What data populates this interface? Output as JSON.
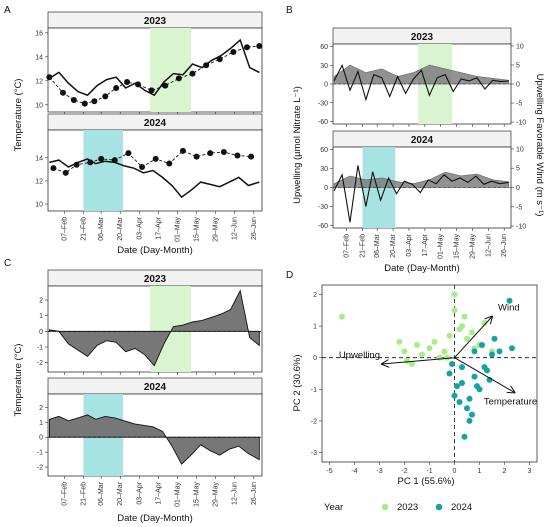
{
  "colors": {
    "period_2023": "#d8f5d0",
    "period_2024": "#a7e3e3",
    "anomaly_fill": "#777777",
    "pca_2023": "#a8ec88",
    "pca_2024": "#14a3a3"
  },
  "chart_data": [
    {
      "panel": "A",
      "type": "line",
      "ylabel": "Temperature (°C)",
      "xlabel": "Date (Day-Month)",
      "x_ticks": [
        "07–Feb",
        "21–Feb",
        "06–Mar",
        "20–Mar",
        "03–Apr",
        "17–Apr",
        "01–May",
        "15–May",
        "29–May",
        "12–Jun",
        "26–Jun"
      ],
      "facets": [
        {
          "title": "2023",
          "ylim": [
            9.4,
            16.4
          ],
          "y_ticks": [
            10,
            12,
            14,
            16
          ],
          "highlight": [
            "2023-04-11",
            "2023-05-11"
          ],
          "line": {
            "x": [
              "2023-01-27",
              "2023-02-03",
              "2023-02-10",
              "2023-02-17",
              "2023-02-24",
              "2023-03-03",
              "2023-03-10",
              "2023-03-17",
              "2023-03-24",
              "2023-03-31",
              "2023-04-07",
              "2023-04-14",
              "2023-04-21",
              "2023-04-28",
              "2023-05-05",
              "2023-05-12",
              "2023-05-19",
              "2023-05-26",
              "2023-06-02",
              "2023-06-09",
              "2023-06-16",
              "2023-06-23",
              "2023-06-30"
            ],
            "y": [
              12.2,
              12.7,
              11.8,
              11.1,
              10.8,
              11.6,
              12.1,
              12.3,
              11.4,
              11.8,
              11.2,
              10.8,
              11.9,
              12.6,
              12.5,
              13.4,
              13.1,
              13.7,
              14.1,
              14.7,
              15.4,
              13.1,
              12.7
            ]
          },
          "points": {
            "x": [
              "2023-01-27",
              "2023-02-06",
              "2023-02-14",
              "2023-02-22",
              "2023-03-01",
              "2023-03-09",
              "2023-03-17",
              "2023-03-25",
              "2023-04-02",
              "2023-04-12",
              "2023-04-22",
              "2023-05-02",
              "2023-05-12",
              "2023-05-22",
              "2023-06-01",
              "2023-06-11",
              "2023-06-21",
              "2023-06-30"
            ],
            "y": [
              12.3,
              11.0,
              10.4,
              10.1,
              10.3,
              10.7,
              11.4,
              11.9,
              11.7,
              11.2,
              11.6,
              12.2,
              12.6,
              13.3,
              13.8,
              14.4,
              14.8,
              14.9
            ]
          }
        },
        {
          "title": "2024",
          "ylim": [
            9.4,
            16.4
          ],
          "y_ticks": [
            10,
            12,
            14
          ],
          "highlight": [
            "2024-02-21",
            "2024-03-22"
          ],
          "line": {
            "x": [
              "2024-01-27",
              "2024-02-03",
              "2024-02-10",
              "2024-02-17",
              "2024-02-24",
              "2024-03-02",
              "2024-03-09",
              "2024-03-16",
              "2024-03-23",
              "2024-03-30",
              "2024-04-06",
              "2024-04-13",
              "2024-04-20",
              "2024-04-27",
              "2024-05-04",
              "2024-05-11",
              "2024-05-18",
              "2024-05-25",
              "2024-06-01",
              "2024-06-08",
              "2024-06-15",
              "2024-06-22",
              "2024-06-30"
            ],
            "y": [
              13.6,
              13.8,
              13.2,
              13.6,
              13.9,
              13.5,
              13.7,
              13.6,
              13.3,
              13.1,
              12.7,
              12.9,
              12.3,
              11.6,
              10.6,
              11.2,
              11.9,
              11.7,
              11.5,
              11.9,
              12.3,
              11.6,
              11.9
            ]
          },
          "points": {
            "x": [
              "2024-01-30",
              "2024-02-08",
              "2024-02-16",
              "2024-02-26",
              "2024-03-06",
              "2024-03-16",
              "2024-03-26",
              "2024-04-05",
              "2024-04-15",
              "2024-04-25",
              "2024-05-05",
              "2024-05-15",
              "2024-05-25",
              "2024-06-04",
              "2024-06-14",
              "2024-06-24"
            ],
            "y": [
              13.1,
              12.7,
              13.4,
              13.6,
              13.9,
              13.8,
              14.4,
              13.2,
              13.9,
              13.5,
              14.6,
              14.1,
              14.4,
              14.5,
              14.2,
              14.1
            ]
          }
        }
      ]
    },
    {
      "panel": "B",
      "type": "line",
      "ylabel": "Upwelling (µmol Nitrate L⁻¹)",
      "ylabel2": "Upwelling Favorable Wind (m s⁻¹)",
      "xlabel": "Date (Day-Month)",
      "x_ticks": [
        "07–Feb",
        "21–Feb",
        "06–Mar",
        "20–Mar",
        "03–Apr",
        "17–Apr",
        "01–May",
        "15–May",
        "29–May",
        "12–Jun",
        "26–Jun"
      ],
      "facets": [
        {
          "title": "2023",
          "ylim": [
            -64,
            64
          ],
          "y_ticks": [
            -60,
            -30,
            0,
            30,
            60
          ],
          "y2_ticks": [
            -10,
            -5,
            0,
            5,
            10
          ],
          "highlight": [
            "2023-04-11",
            "2023-05-11"
          ],
          "nitrate": {
            "x": [
              "2023-01-27",
              "2023-02-03",
              "2023-02-10",
              "2023-02-17",
              "2023-02-24",
              "2023-03-03",
              "2023-03-10",
              "2023-03-17",
              "2023-03-24",
              "2023-03-31",
              "2023-04-07",
              "2023-04-14",
              "2023-04-21",
              "2023-04-28",
              "2023-05-05",
              "2023-05-12",
              "2023-05-19",
              "2023-05-26",
              "2023-06-02",
              "2023-06-09",
              "2023-06-16",
              "2023-06-23",
              "2023-06-30"
            ],
            "y": [
              5,
              30,
              -10,
              20,
              -25,
              15,
              10,
              -20,
              12,
              -15,
              8,
              22,
              -18,
              10,
              15,
              -12,
              8,
              5,
              10,
              -8,
              6,
              4,
              5
            ]
          },
          "wind": {
            "x": [
              "2023-01-27",
              "2023-02-10",
              "2023-02-24",
              "2023-03-10",
              "2023-03-24",
              "2023-04-07",
              "2023-04-21",
              "2023-05-05",
              "2023-05-19",
              "2023-06-02",
              "2023-06-16",
              "2023-06-30"
            ],
            "y": [
              2,
              5,
              3,
              4,
              2,
              3,
              5,
              4,
              3,
              2,
              1.5,
              1
            ]
          }
        },
        {
          "title": "2024",
          "ylim": [
            -64,
            64
          ],
          "y_ticks": [
            -60,
            -30,
            0,
            30,
            60
          ],
          "y2_ticks": [
            -10,
            -5,
            0,
            5,
            10
          ],
          "highlight": [
            "2024-02-21",
            "2024-03-22"
          ],
          "nitrate": {
            "x": [
              "2024-01-27",
              "2024-02-03",
              "2024-02-10",
              "2024-02-17",
              "2024-02-24",
              "2024-03-02",
              "2024-03-09",
              "2024-03-16",
              "2024-03-23",
              "2024-03-30",
              "2024-04-06",
              "2024-04-13",
              "2024-04-20",
              "2024-04-27",
              "2024-05-04",
              "2024-05-11",
              "2024-05-18",
              "2024-05-25",
              "2024-06-01",
              "2024-06-08",
              "2024-06-15",
              "2024-06-22",
              "2024-06-30"
            ],
            "y": [
              -5,
              20,
              -55,
              35,
              -30,
              25,
              -20,
              15,
              -10,
              10,
              5,
              -8,
              12,
              6,
              20,
              10,
              15,
              8,
              18,
              5,
              10,
              6,
              8
            ]
          },
          "wind": {
            "x": [
              "2024-01-27",
              "2024-02-10",
              "2024-02-24",
              "2024-03-10",
              "2024-03-24",
              "2024-04-07",
              "2024-04-21",
              "2024-05-05",
              "2024-05-19",
              "2024-06-02",
              "2024-06-16",
              "2024-06-30"
            ],
            "y": [
              1,
              3,
              2,
              2.5,
              1.5,
              1,
              2,
              4,
              3,
              3.5,
              2,
              1.5
            ]
          }
        }
      ]
    },
    {
      "panel": "C",
      "type": "area",
      "ylabel": "Temperature (°C)",
      "xlabel": "Date (Day-Month)",
      "x_ticks": [
        "07–Feb",
        "21–Feb",
        "06–Mar",
        "20–Mar",
        "03–Apr",
        "17–Apr",
        "01–May",
        "15–May",
        "29–May",
        "12–Jun",
        "26–Jun"
      ],
      "facets": [
        {
          "title": "2023",
          "ylim": [
            -2.6,
            2.9
          ],
          "y_ticks": [
            -2,
            -1,
            0,
            1,
            2
          ],
          "highlight": [
            "2023-04-11",
            "2023-05-11"
          ],
          "anomaly": {
            "x": [
              "2023-01-27",
              "2023-02-03",
              "2023-02-10",
              "2023-02-17",
              "2023-02-24",
              "2023-03-03",
              "2023-03-10",
              "2023-03-17",
              "2023-03-24",
              "2023-03-31",
              "2023-04-07",
              "2023-04-14",
              "2023-04-21",
              "2023-04-28",
              "2023-05-05",
              "2023-05-12",
              "2023-05-19",
              "2023-05-26",
              "2023-06-02",
              "2023-06-09",
              "2023-06-16",
              "2023-06-23",
              "2023-06-30"
            ],
            "y": [
              0.1,
              0.0,
              -0.8,
              -1.2,
              -1.6,
              -0.9,
              -0.6,
              -0.7,
              -1.3,
              -1.1,
              -1.5,
              -2.2,
              -0.8,
              0.3,
              0.4,
              0.6,
              0.7,
              0.9,
              1.1,
              1.4,
              2.6,
              -0.4,
              -0.9
            ]
          }
        },
        {
          "title": "2024",
          "ylim": [
            -2.6,
            2.9
          ],
          "y_ticks": [
            -2,
            -1,
            0,
            1,
            2
          ],
          "highlight": [
            "2024-02-21",
            "2024-03-22"
          ],
          "anomaly": {
            "x": [
              "2024-01-27",
              "2024-02-03",
              "2024-02-10",
              "2024-02-17",
              "2024-02-24",
              "2024-03-02",
              "2024-03-09",
              "2024-03-16",
              "2024-03-23",
              "2024-03-30",
              "2024-04-06",
              "2024-04-13",
              "2024-04-20",
              "2024-04-27",
              "2024-05-04",
              "2024-05-11",
              "2024-05-18",
              "2024-05-25",
              "2024-06-01",
              "2024-06-08",
              "2024-06-15",
              "2024-06-22",
              "2024-06-30"
            ],
            "y": [
              1.2,
              1.4,
              1.1,
              1.3,
              1.5,
              1.2,
              1.4,
              1.3,
              1.1,
              0.9,
              0.8,
              0.7,
              0.4,
              -0.6,
              -1.8,
              -1.2,
              -0.5,
              -0.9,
              -1.2,
              -0.8,
              -0.6,
              -1.1,
              -1.5
            ]
          }
        }
      ]
    },
    {
      "panel": "D",
      "type": "scatter",
      "xlabel": "PC 1 (55.6%)",
      "ylabel": "PC 2 (30.6%)",
      "xlim": [
        -5.3,
        3.3
      ],
      "ylim": [
        -3.3,
        2.3
      ],
      "x_ticks": [
        -5,
        -4,
        -3,
        -2,
        -1,
        0,
        1,
        2,
        3
      ],
      "y_ticks": [
        -3,
        -2,
        -1,
        0,
        1,
        2
      ],
      "legend": {
        "title": "Year",
        "position": "bottom",
        "items": [
          "2023",
          "2024"
        ]
      },
      "series": [
        {
          "name": "2023",
          "x": [
            -4.5,
            -2.2,
            -2.0,
            -1.9,
            -1.7,
            -1.5,
            -1.3,
            -1.0,
            -0.8,
            -0.6,
            -0.4,
            0.0,
            0.3,
            0.5,
            0.7,
            1.0,
            1.2,
            -0.3,
            0.8,
            0.2,
            0.0,
            -0.2,
            0.4,
            1.5
          ],
          "y": [
            1.3,
            0.5,
            0.2,
            -0.1,
            -0.2,
            0.4,
            0.1,
            0.3,
            0.5,
            0.0,
            0.2,
            1.5,
            1.0,
            0.6,
            0.8,
            0.4,
            1.1,
            0.0,
            0.3,
            0.9,
            2.0,
            0.7,
            1.3,
            0.2
          ]
        },
        {
          "name": "2024",
          "x": [
            2.2,
            2.3,
            1.5,
            1.2,
            0.8,
            0.3,
            0.0,
            -0.2,
            0.5,
            1.0,
            1.3,
            0.6,
            0.2,
            0.9,
            1.1,
            -0.1,
            0.4,
            0.7,
            1.6,
            0.1,
            0.8,
            1.4,
            0.3,
            0.6,
            1.8
          ],
          "y": [
            1.8,
            0.3,
            0.1,
            -0.3,
            -0.6,
            -0.8,
            -1.2,
            -0.5,
            -1.6,
            -1.0,
            -0.4,
            -2.0,
            -1.4,
            -0.9,
            0.4,
            -0.2,
            -2.5,
            -1.8,
            0.6,
            -0.9,
            0.2,
            -0.7,
            -0.3,
            -1.3,
            0.2
          ]
        }
      ],
      "loadings": [
        {
          "label": "Wind",
          "x": 1.5,
          "y": 1.3
        },
        {
          "label": "Upwelling",
          "x": -2.9,
          "y": -0.2
        },
        {
          "label": "Temperature",
          "x": 2.4,
          "y": -1.1
        }
      ]
    }
  ]
}
